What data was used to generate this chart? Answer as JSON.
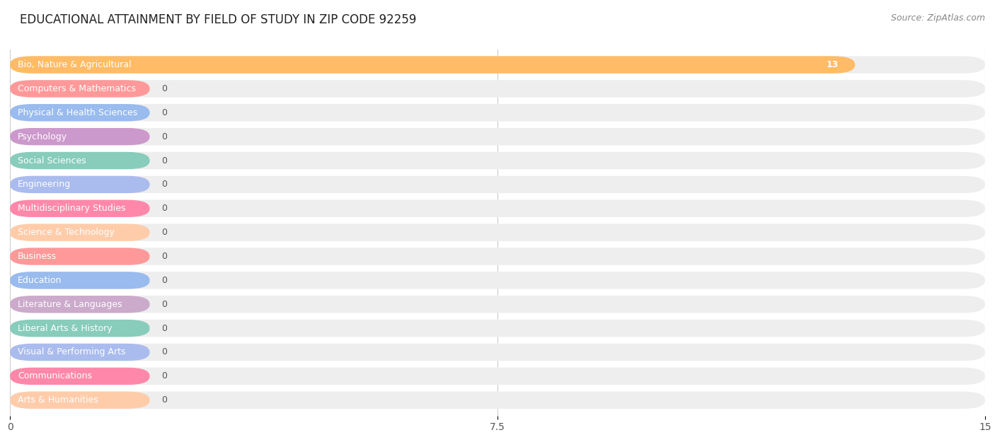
{
  "title": "EDUCATIONAL ATTAINMENT BY FIELD OF STUDY IN ZIP CODE 92259",
  "source": "Source: ZipAtlas.com",
  "categories": [
    "Bio, Nature & Agricultural",
    "Computers & Mathematics",
    "Physical & Health Sciences",
    "Psychology",
    "Social Sciences",
    "Engineering",
    "Multidisciplinary Studies",
    "Science & Technology",
    "Business",
    "Education",
    "Literature & Languages",
    "Liberal Arts & History",
    "Visual & Performing Arts",
    "Communications",
    "Arts & Humanities"
  ],
  "values": [
    13,
    0,
    0,
    0,
    0,
    0,
    0,
    0,
    0,
    0,
    0,
    0,
    0,
    0,
    0
  ],
  "bar_colors": [
    "#FFBB66",
    "#FF9999",
    "#99BBEE",
    "#CC99CC",
    "#88CCBB",
    "#AABBEE",
    "#FF88AA",
    "#FFCCAA",
    "#FF9999",
    "#99BBEE",
    "#CCAACC",
    "#88CCBB",
    "#AABBEE",
    "#FF88AA",
    "#FFCCAA"
  ],
  "xlim": [
    0,
    15
  ],
  "xticks": [
    0,
    7.5,
    15
  ],
  "background_color": "#ffffff",
  "bar_bg_color": "#eeeeee",
  "title_fontsize": 12,
  "value_fontsize": 9,
  "source_fontsize": 9
}
